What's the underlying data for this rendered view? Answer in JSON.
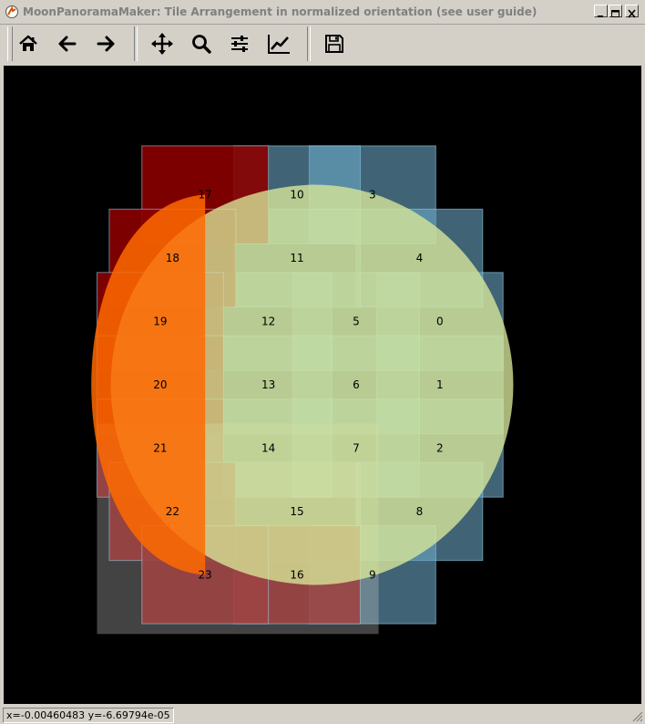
{
  "window": {
    "title": "MoonPanoramaMaker: Tile Arrangement in normalized orientation (see user guide)"
  },
  "toolbar": [
    {
      "name": "home-button",
      "icon": "home-icon",
      "tooltip": "Home"
    },
    {
      "name": "back-button",
      "icon": "arrow-left-icon",
      "tooltip": "Back"
    },
    {
      "name": "forward-button",
      "icon": "arrow-right-icon",
      "tooltip": "Forward"
    },
    {
      "name": "pan-button",
      "icon": "move-icon",
      "tooltip": "Pan"
    },
    {
      "name": "zoom-button",
      "icon": "magnifier-icon",
      "tooltip": "Zoom"
    },
    {
      "name": "subplots-button",
      "icon": "sliders-icon",
      "tooltip": "Subplots"
    },
    {
      "name": "customize-button",
      "icon": "line-chart-icon",
      "tooltip": "Customize"
    },
    {
      "name": "save-button",
      "icon": "floppy-disk-icon",
      "tooltip": "Save"
    }
  ],
  "status": {
    "coords": "x=-0.00460483  y=-6.69794e-05"
  },
  "colors": {
    "background": "#000000",
    "moon_fill": "#d8e89a",
    "tile_processed": "#8b0000",
    "tile_pending": "#6aa6c4",
    "overlay_gray": "#c0c0c0",
    "chrome": "#d4d0c8"
  },
  "chart_data": {
    "type": "tile-arrangement",
    "xlim": [
      -1.25,
      1.25
    ],
    "ylim": [
      -1.25,
      1.25
    ],
    "moon_disk": {
      "cx": 0,
      "cy": 0,
      "r": 1.0,
      "limb_offset_x": 0.08
    },
    "tiles": [
      {
        "label": "0",
        "x": 0.7,
        "y": 0.31,
        "state": "pending"
      },
      {
        "label": "1",
        "x": 0.7,
        "y": 0.0,
        "state": "pending"
      },
      {
        "label": "2",
        "x": 0.7,
        "y": -0.31,
        "state": "pending"
      },
      {
        "label": "3",
        "x": 0.37,
        "y": 0.93,
        "state": "pending"
      },
      {
        "label": "4",
        "x": 0.6,
        "y": 0.62,
        "state": "pending"
      },
      {
        "label": "5",
        "x": 0.29,
        "y": 0.31,
        "state": "pending"
      },
      {
        "label": "6",
        "x": 0.29,
        "y": 0.0,
        "state": "pending"
      },
      {
        "label": "7",
        "x": 0.29,
        "y": -0.31,
        "state": "pending"
      },
      {
        "label": "8",
        "x": 0.6,
        "y": -0.62,
        "state": "pending"
      },
      {
        "label": "9",
        "x": 0.37,
        "y": -0.93,
        "state": "pending"
      },
      {
        "label": "10",
        "x": 0.0,
        "y": 0.93,
        "state": "pending"
      },
      {
        "label": "11",
        "x": 0.0,
        "y": 0.62,
        "state": "pending"
      },
      {
        "label": "12",
        "x": -0.14,
        "y": 0.31,
        "state": "pending"
      },
      {
        "label": "13",
        "x": -0.14,
        "y": 0.0,
        "state": "pending"
      },
      {
        "label": "14",
        "x": -0.14,
        "y": -0.31,
        "state": "pending"
      },
      {
        "label": "15",
        "x": 0.0,
        "y": -0.62,
        "state": "selected"
      },
      {
        "label": "16",
        "x": 0.0,
        "y": -0.93,
        "state": "processed"
      },
      {
        "label": "17",
        "x": -0.45,
        "y": 0.93,
        "state": "processed"
      },
      {
        "label": "18",
        "x": -0.61,
        "y": 0.62,
        "state": "processed"
      },
      {
        "label": "19",
        "x": -0.67,
        "y": 0.31,
        "state": "processed"
      },
      {
        "label": "20",
        "x": -0.67,
        "y": 0.0,
        "state": "processed"
      },
      {
        "label": "21",
        "x": -0.67,
        "y": -0.31,
        "state": "processed"
      },
      {
        "label": "22",
        "x": -0.61,
        "y": -0.62,
        "state": "processed"
      },
      {
        "label": "23",
        "x": -0.45,
        "y": -0.93,
        "state": "processed"
      }
    ]
  }
}
